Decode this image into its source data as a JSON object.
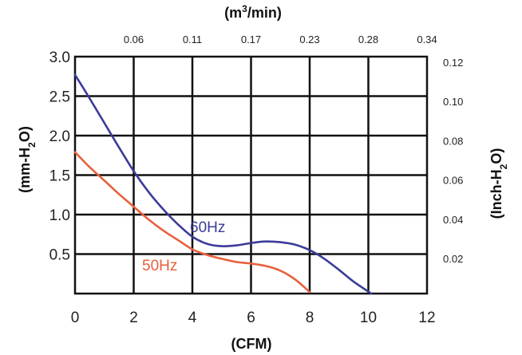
{
  "chart_data": {
    "type": "line",
    "xlabel": "(CFM)",
    "ylabel": "(mm-H2O)",
    "x2label": "(m3/min)",
    "y2label": "(Inch-H2O)",
    "xlim": [
      0,
      12
    ],
    "ylim": [
      0,
      3.0
    ],
    "x_ticks": [
      "0",
      "2",
      "4",
      "6",
      "8",
      "10",
      "12"
    ],
    "y_ticks": [
      "0.5",
      "1.0",
      "1.5",
      "2.0",
      "2.5",
      "3.0"
    ],
    "x2_ticks": [
      "0.06",
      "0.11",
      "0.17",
      "0.23",
      "0.28",
      "0.34"
    ],
    "y2_ticks": [
      "0.02",
      "0.04",
      "0.06",
      "0.08",
      "0.10",
      "0.12"
    ],
    "grid": true,
    "series": [
      {
        "name": "60Hz",
        "color": "#3b3b9a",
        "x": [
          0,
          0.5,
          1,
          1.5,
          2,
          2.5,
          3,
          3.5,
          4,
          4.5,
          5,
          5.5,
          6,
          6.5,
          7,
          7.5,
          8,
          8.5,
          9,
          9.5,
          10.1
        ],
        "y": [
          2.77,
          2.47,
          2.16,
          1.85,
          1.55,
          1.29,
          1.07,
          0.88,
          0.72,
          0.63,
          0.6,
          0.61,
          0.64,
          0.66,
          0.65,
          0.62,
          0.55,
          0.44,
          0.3,
          0.15,
          0
        ]
      },
      {
        "name": "50Hz",
        "color": "#e8603c",
        "x": [
          0,
          0.5,
          1,
          1.5,
          2,
          2.5,
          3,
          3.5,
          4,
          4.5,
          5,
          5.5,
          6,
          6.5,
          7,
          7.5,
          8
        ],
        "y": [
          1.79,
          1.6,
          1.43,
          1.26,
          1.1,
          0.94,
          0.8,
          0.68,
          0.56,
          0.49,
          0.44,
          0.4,
          0.38,
          0.35,
          0.29,
          0.18,
          0.02
        ]
      }
    ]
  }
}
